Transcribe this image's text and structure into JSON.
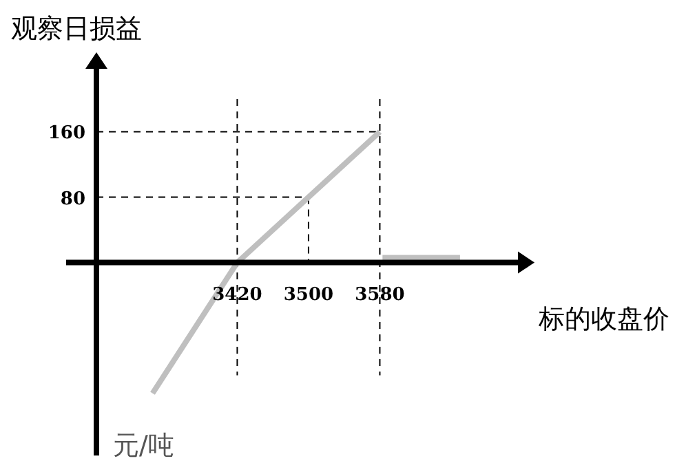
{
  "chart_data": {
    "type": "line",
    "xlabel": "标的收盘价",
    "ylabel": "观察日损益",
    "annotations": [
      "元/吨"
    ],
    "xlim": [
      3262,
      3735
    ],
    "ylim": [
      -236,
      237
    ],
    "xticks": [
      3420,
      3500,
      3580
    ],
    "yticks": [
      80,
      160
    ],
    "line_style": "solid",
    "series": [
      {
        "color": "#bfbfbf",
        "x": [
          3325,
          3420,
          3580
        ],
        "values": [
          -160,
          0,
          160
        ]
      },
      {
        "color": "#bfbfbf",
        "x": [
          3583,
          3670
        ],
        "values": [
          6,
          6
        ]
      }
    ],
    "ref_lines": [
      {
        "axis": "x",
        "value": 3420,
        "color": "#000000",
        "line_style": "dashed"
      },
      {
        "axis": "x",
        "value": 3500,
        "color": "#000000",
        "line_style": "dashed"
      },
      {
        "axis": "x",
        "value": 3580,
        "color": "#000000",
        "line_style": "dashed"
      },
      {
        "axis": "y",
        "value": 80,
        "color": "#000000",
        "line_style": "dashed"
      },
      {
        "axis": "y",
        "value": 160,
        "color": "#000000",
        "line_style": "dashed"
      }
    ]
  }
}
